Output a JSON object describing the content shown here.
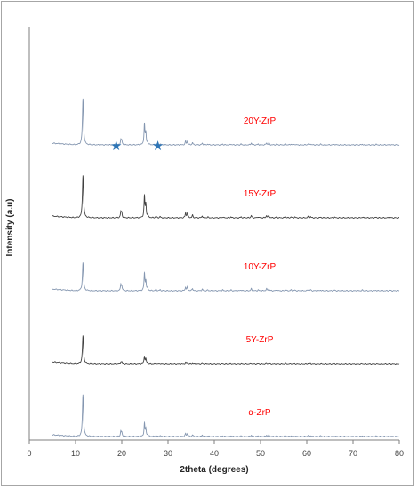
{
  "chart_data": {
    "type": "line",
    "title": "",
    "xlabel": "2theta (degrees)",
    "ylabel": "Intensity (a.u)",
    "xlim": [
      0,
      80
    ],
    "xticks": [
      0,
      10,
      20,
      30,
      40,
      50,
      60,
      70,
      80
    ],
    "grid": false,
    "legend": "none",
    "label_color": "#ff0000",
    "marker_color": "#2e75b6",
    "x_range": [
      5,
      80
    ],
    "series": [
      {
        "name": "20Y-ZrP",
        "color": "#8496b0",
        "offset": 4,
        "peaks": [
          [
            11.6,
            2.8
          ],
          [
            19.8,
            0.3
          ],
          [
            20.0,
            0.25
          ],
          [
            24.9,
            1.3
          ],
          [
            25.2,
            0.7
          ],
          [
            25.6,
            0.15
          ],
          [
            27.4,
            0.08
          ],
          [
            28.3,
            0.06
          ],
          [
            33.8,
            0.22
          ],
          [
            34.2,
            0.22
          ],
          [
            35.3,
            0.14
          ],
          [
            37.4,
            0.1
          ],
          [
            38.6,
            0.05
          ],
          [
            41.8,
            0.05
          ],
          [
            43.6,
            0.05
          ],
          [
            45.8,
            0.05
          ],
          [
            48.0,
            0.12
          ],
          [
            49.5,
            0.05
          ],
          [
            51.3,
            0.12
          ],
          [
            51.8,
            0.12
          ],
          [
            53.5,
            0.05
          ],
          [
            55.4,
            0.06
          ],
          [
            56.6,
            0.05
          ],
          [
            57.4,
            0.04
          ],
          [
            60.3,
            0.06
          ],
          [
            60.8,
            0.06
          ],
          [
            63.0,
            0.04
          ],
          [
            66.0,
            0.04
          ],
          [
            72.0,
            0.04
          ],
          [
            75.0,
            0.03
          ],
          [
            78.0,
            0.03
          ]
        ]
      },
      {
        "name": "15Y-ZrP",
        "color": "#404040",
        "offset": 3,
        "peaks": [
          [
            11.6,
            2.6
          ],
          [
            19.8,
            0.35
          ],
          [
            20.0,
            0.28
          ],
          [
            24.9,
            1.3
          ],
          [
            25.2,
            0.8
          ],
          [
            25.6,
            0.16
          ],
          [
            27.4,
            0.1
          ],
          [
            28.3,
            0.07
          ],
          [
            33.8,
            0.3
          ],
          [
            34.2,
            0.3
          ],
          [
            35.3,
            0.16
          ],
          [
            37.4,
            0.12
          ],
          [
            38.6,
            0.05
          ],
          [
            41.8,
            0.05
          ],
          [
            43.6,
            0.06
          ],
          [
            45.8,
            0.06
          ],
          [
            48.0,
            0.14
          ],
          [
            49.5,
            0.06
          ],
          [
            51.3,
            0.14
          ],
          [
            51.8,
            0.14
          ],
          [
            53.5,
            0.06
          ],
          [
            55.4,
            0.07
          ],
          [
            56.6,
            0.05
          ],
          [
            57.4,
            0.05
          ],
          [
            60.3,
            0.07
          ],
          [
            60.8,
            0.07
          ],
          [
            63.0,
            0.04
          ],
          [
            66.0,
            0.04
          ],
          [
            72.0,
            0.04
          ],
          [
            75.0,
            0.03
          ],
          [
            78.0,
            0.03
          ]
        ]
      },
      {
        "name": "10Y-ZrP",
        "color": "#8496b0",
        "offset": 2,
        "peaks": [
          [
            11.6,
            1.7
          ],
          [
            19.8,
            0.35
          ],
          [
            20.0,
            0.28
          ],
          [
            24.9,
            1.05
          ],
          [
            25.2,
            0.6
          ],
          [
            25.6,
            0.14
          ],
          [
            27.4,
            0.08
          ],
          [
            28.3,
            0.06
          ],
          [
            33.8,
            0.22
          ],
          [
            34.2,
            0.22
          ],
          [
            35.3,
            0.14
          ],
          [
            37.4,
            0.1
          ],
          [
            38.6,
            0.05
          ],
          [
            41.8,
            0.05
          ],
          [
            43.6,
            0.05
          ],
          [
            45.8,
            0.05
          ],
          [
            48.0,
            0.12
          ],
          [
            49.5,
            0.05
          ],
          [
            51.3,
            0.12
          ],
          [
            51.8,
            0.12
          ],
          [
            53.5,
            0.05
          ],
          [
            55.4,
            0.06
          ],
          [
            56.6,
            0.05
          ],
          [
            57.4,
            0.04
          ],
          [
            60.3,
            0.06
          ],
          [
            60.8,
            0.06
          ],
          [
            63.0,
            0.04
          ],
          [
            66.0,
            0.04
          ],
          [
            72.0,
            0.04
          ],
          [
            75.0,
            0.03
          ],
          [
            78.0,
            0.03
          ]
        ]
      },
      {
        "name": "5Y-ZrP",
        "color": "#404040",
        "offset": 1,
        "peaks": [
          [
            11.6,
            1.7
          ],
          [
            19.8,
            0.1
          ],
          [
            20.0,
            0.08
          ],
          [
            24.9,
            0.45
          ],
          [
            25.2,
            0.25
          ],
          [
            25.6,
            0.06
          ],
          [
            27.4,
            0.03
          ],
          [
            28.3,
            0.03
          ],
          [
            33.8,
            0.07
          ],
          [
            34.2,
            0.07
          ],
          [
            35.3,
            0.05
          ],
          [
            37.4,
            0.04
          ],
          [
            38.6,
            0.02
          ],
          [
            41.8,
            0.02
          ],
          [
            43.6,
            0.02
          ],
          [
            45.8,
            0.02
          ],
          [
            48.0,
            0.04
          ],
          [
            49.5,
            0.02
          ],
          [
            51.3,
            0.04
          ],
          [
            51.8,
            0.04
          ],
          [
            53.5,
            0.02
          ],
          [
            55.4,
            0.03
          ],
          [
            56.6,
            0.02
          ],
          [
            57.4,
            0.02
          ],
          [
            60.3,
            0.03
          ],
          [
            60.8,
            0.03
          ],
          [
            63.0,
            0.02
          ],
          [
            66.0,
            0.02
          ],
          [
            72.0,
            0.02
          ],
          [
            75.0,
            0.01
          ],
          [
            78.0,
            0.01
          ]
        ]
      },
      {
        "name": "α-ZrP",
        "color": "#8496b0",
        "offset": 0,
        "peaks": [
          [
            11.6,
            2.55
          ],
          [
            19.8,
            0.3
          ],
          [
            20.0,
            0.22
          ],
          [
            24.9,
            0.8
          ],
          [
            25.2,
            0.45
          ],
          [
            25.6,
            0.1
          ],
          [
            27.4,
            0.06
          ],
          [
            28.3,
            0.05
          ],
          [
            33.8,
            0.18
          ],
          [
            34.2,
            0.18
          ],
          [
            35.3,
            0.1
          ],
          [
            37.4,
            0.08
          ],
          [
            38.6,
            0.04
          ],
          [
            41.8,
            0.04
          ],
          [
            43.6,
            0.05
          ],
          [
            45.8,
            0.04
          ],
          [
            48.0,
            0.08
          ],
          [
            49.5,
            0.04
          ],
          [
            51.3,
            0.08
          ],
          [
            51.8,
            0.08
          ],
          [
            53.5,
            0.04
          ],
          [
            55.4,
            0.05
          ],
          [
            56.6,
            0.04
          ],
          [
            57.4,
            0.03
          ],
          [
            60.3,
            0.06
          ],
          [
            60.8,
            0.06
          ],
          [
            63.0,
            0.04
          ],
          [
            66.0,
            0.03
          ],
          [
            72.0,
            0.04
          ],
          [
            75.0,
            0.03
          ],
          [
            78.0,
            0.02
          ]
        ]
      }
    ],
    "markers": [
      {
        "symbol": "★",
        "x": 18.8
      },
      {
        "symbol": "★",
        "x": 27.8
      }
    ]
  }
}
